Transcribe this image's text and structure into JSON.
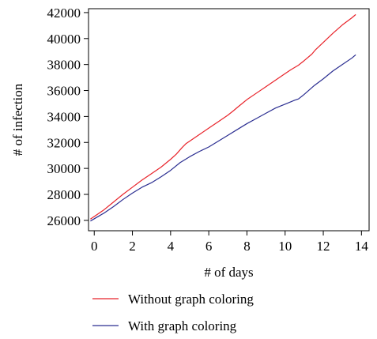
{
  "chart_data": {
    "type": "line",
    "xlabel": "# of days",
    "ylabel": "# of infection",
    "xlim": [
      -0.3,
      14.4
    ],
    "ylim": [
      25200,
      42300
    ],
    "xticks": [
      0,
      2,
      4,
      6,
      8,
      10,
      12,
      14
    ],
    "yticks": [
      26000,
      28000,
      30000,
      32000,
      34000,
      36000,
      38000,
      40000,
      42000
    ],
    "xtick_labels": [
      "0",
      "2",
      "4",
      "6",
      "8",
      "10",
      "12",
      "14"
    ],
    "ytick_labels": [
      "26000",
      "28000",
      "30000",
      "32000",
      "34000",
      "36000",
      "38000",
      "40000",
      "42000"
    ],
    "grid": false,
    "legend_position": "bottom",
    "series": [
      {
        "name": "Without graph coloring",
        "color": "#e8232a",
        "x": [
          -0.2,
          0.5,
          1,
          1.5,
          2,
          2.5,
          3,
          3.5,
          4,
          4.3,
          4.6,
          4.8,
          5,
          5.5,
          6,
          6.5,
          7,
          7.3,
          7.5,
          8,
          8.5,
          9,
          9.5,
          10,
          10.3,
          10.7,
          11,
          11.4,
          11.6,
          12,
          12.5,
          13,
          13.5,
          13.7
        ],
        "y": [
          26100,
          26800,
          27400,
          28000,
          28550,
          29100,
          29600,
          30100,
          30700,
          31100,
          31600,
          31900,
          32100,
          32600,
          33100,
          33600,
          34100,
          34450,
          34700,
          35300,
          35800,
          36300,
          36800,
          37300,
          37600,
          37950,
          38300,
          38800,
          39150,
          39700,
          40400,
          41050,
          41600,
          41850
        ]
      },
      {
        "name": "With graph coloring",
        "color": "#2b2e91",
        "x": [
          -0.2,
          0.5,
          1,
          1.5,
          2,
          2.5,
          3,
          3.5,
          4,
          4.5,
          5,
          5.5,
          6,
          6.5,
          7,
          7.5,
          8,
          8.5,
          9,
          9.5,
          10,
          10.5,
          10.7,
          11,
          11.5,
          12,
          12.5,
          13,
          13.5,
          13.7
        ],
        "y": [
          25950,
          26550,
          27050,
          27600,
          28100,
          28550,
          28900,
          29350,
          29850,
          30450,
          30900,
          31300,
          31650,
          32100,
          32550,
          33000,
          33450,
          33850,
          34250,
          34650,
          34950,
          35250,
          35350,
          35700,
          36350,
          36900,
          37500,
          38000,
          38500,
          38750
        ]
      }
    ]
  }
}
